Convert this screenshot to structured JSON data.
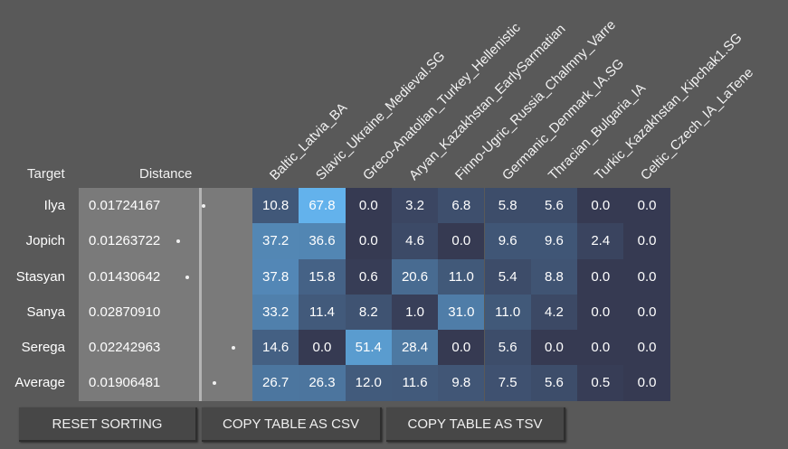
{
  "headers": {
    "target": "Target",
    "distance": "Distance",
    "columns": [
      "Baltic_Latvia_BA",
      "Slavic_Ukraine_Medieval.SG",
      "Greco-Anatolian_Turkey_Hellenistic",
      "Aryan_Kazakhstan_EarlySarmatian",
      "Finno-Ugric_Russia_Chalmny_Varre",
      "Germanic_Denmark_IA.SG",
      "Thracian_Bulgaria_IA",
      "Turkic_Kazakhstan_Kipchak1.SG",
      "Celtic_Czech_IA_LaTene"
    ]
  },
  "rows": [
    {
      "target": "Ilya",
      "distance": "0.01724167",
      "values": [
        "10.8",
        "67.8",
        "0.0",
        "3.2",
        "6.8",
        "5.8",
        "5.6",
        "0.0",
        "0.0"
      ]
    },
    {
      "target": "Jopich",
      "distance": "0.01263722",
      "values": [
        "37.2",
        "36.6",
        "0.0",
        "4.6",
        "0.0",
        "9.6",
        "9.6",
        "2.4",
        "0.0"
      ]
    },
    {
      "target": "Stasyan",
      "distance": "0.01430642",
      "values": [
        "37.8",
        "15.8",
        "0.6",
        "20.6",
        "11.0",
        "5.4",
        "8.8",
        "0.0",
        "0.0"
      ]
    },
    {
      "target": "Sanya",
      "distance": "0.02870910",
      "values": [
        "33.2",
        "11.4",
        "8.2",
        "1.0",
        "31.0",
        "11.0",
        "4.2",
        "0.0",
        "0.0"
      ]
    },
    {
      "target": "Serega",
      "distance": "0.02242963",
      "values": [
        "14.6",
        "0.0",
        "51.4",
        "28.4",
        "0.0",
        "5.6",
        "0.0",
        "0.0",
        "0.0"
      ]
    },
    {
      "target": "Average",
      "distance": "0.01906481",
      "values": [
        "26.7",
        "26.3",
        "12.0",
        "11.6",
        "9.8",
        "7.5",
        "5.6",
        "0.5",
        "0.0"
      ]
    }
  ],
  "buttons": {
    "reset": "RESET SORTING",
    "csv": "COPY TABLE AS CSV",
    "tsv": "COPY TABLE AS TSV"
  },
  "colors": {
    "background": "#595959",
    "distance_cell": "#7a7a7a",
    "cell_low": "#363a52",
    "cell_high": "#64b5f0"
  }
}
